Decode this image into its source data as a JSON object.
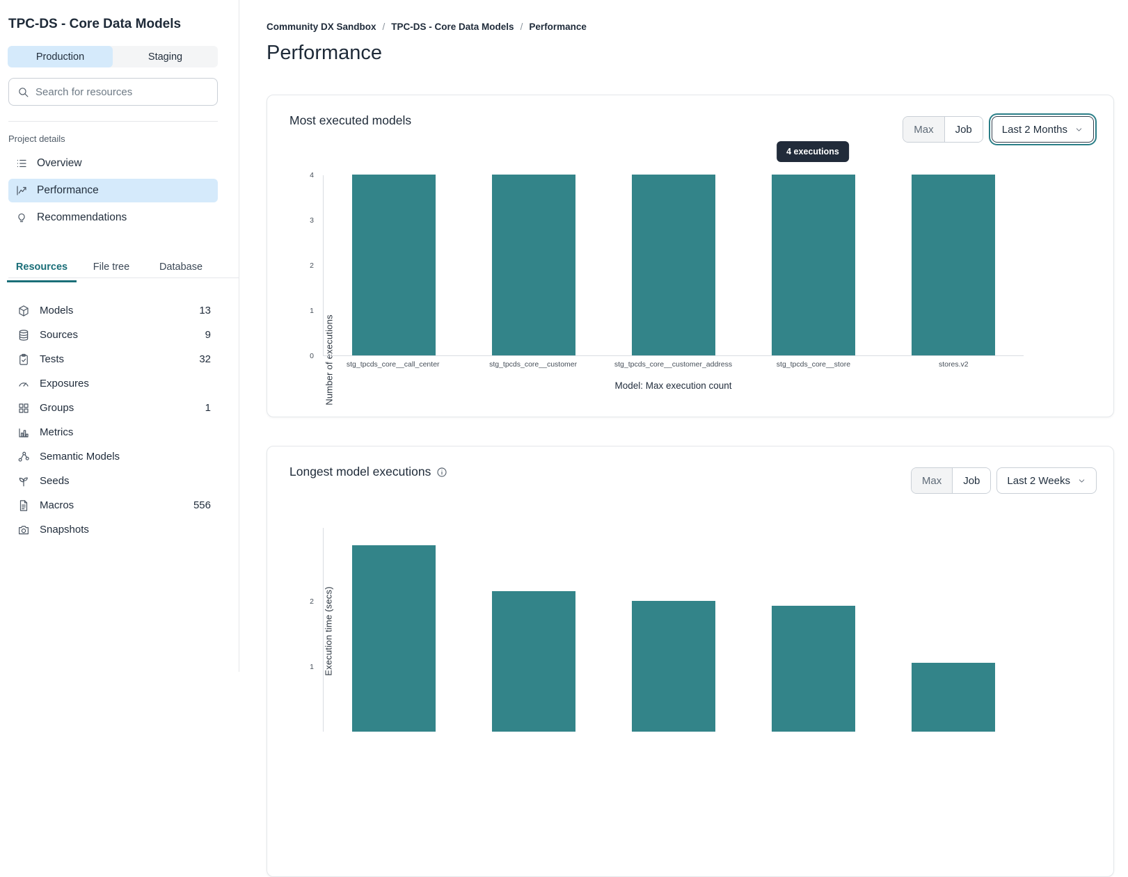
{
  "sidebar": {
    "title": "TPC-DS - Core Data Models",
    "env_toggle": {
      "production": "Production",
      "staging": "Staging"
    },
    "search": {
      "placeholder": "Search for resources"
    },
    "project_details": {
      "label": "Project details",
      "items": [
        {
          "label": "Overview",
          "icon": "list-icon",
          "active": false
        },
        {
          "label": "Performance",
          "icon": "line-chart-icon",
          "active": true
        },
        {
          "label": "Recommendations",
          "icon": "lightbulb-icon",
          "active": false
        }
      ]
    },
    "tabs": [
      {
        "label": "Resources",
        "active": true
      },
      {
        "label": "File tree",
        "active": false
      },
      {
        "label": "Database",
        "active": false
      }
    ],
    "resources": [
      {
        "label": "Models",
        "count": "13",
        "icon": "cube-icon"
      },
      {
        "label": "Sources",
        "count": "9",
        "icon": "database-icon"
      },
      {
        "label": "Tests",
        "count": "32",
        "icon": "clipboard-check-icon"
      },
      {
        "label": "Exposures",
        "count": "",
        "icon": "gauge-icon"
      },
      {
        "label": "Groups",
        "count": "1",
        "icon": "grid-icon"
      },
      {
        "label": "Metrics",
        "count": "",
        "icon": "bar-chart-icon"
      },
      {
        "label": "Semantic Models",
        "count": "",
        "icon": "nodes-icon"
      },
      {
        "label": "Seeds",
        "count": "",
        "icon": "seedling-icon"
      },
      {
        "label": "Macros",
        "count": "556",
        "icon": "file-icon"
      },
      {
        "label": "Snapshots",
        "count": "",
        "icon": "camera-icon"
      }
    ]
  },
  "breadcrumb": {
    "items": [
      "Community DX Sandbox",
      "TPC-DS - Core Data Models",
      "Performance"
    ],
    "separator": "/"
  },
  "page_title": "Performance",
  "cards": [
    {
      "title": "Most executed models",
      "buttons": {
        "max": "Max",
        "job": "Job"
      },
      "range": "Last 2 Months",
      "tooltip": "4 executions"
    },
    {
      "title": "Longest model executions",
      "buttons": {
        "max": "Max",
        "job": "Job"
      },
      "range": "Last 2 Weeks"
    }
  ],
  "chart_data": [
    {
      "type": "bar",
      "title": "Most executed models",
      "categories": [
        "stg_tpcds_core__call_center",
        "stg_tpcds_core__customer",
        "stg_tpcds_core__customer_address",
        "stg_tpcds_core__store",
        "stores.v2"
      ],
      "values": [
        4,
        4,
        4,
        4,
        4
      ],
      "ylabel": "Number of executions",
      "xlabel": "Model: Max execution count",
      "yticks": [
        0,
        1,
        2,
        3,
        4
      ],
      "ylim": [
        0,
        4
      ],
      "bar_color": "#338489",
      "grid": false,
      "legend": "none",
      "tooltip": {
        "text": "4 executions",
        "bar_index": 3
      }
    },
    {
      "type": "bar",
      "title": "Longest model executions",
      "values": [
        2.85,
        2.15,
        2.0,
        1.93,
        1.05
      ],
      "ylabel": "Execution time (secs)",
      "yticks": [
        1,
        2
      ],
      "ylim": [
        0,
        2.9
      ],
      "bar_color": "#338489",
      "grid": false,
      "legend": "none"
    }
  ]
}
